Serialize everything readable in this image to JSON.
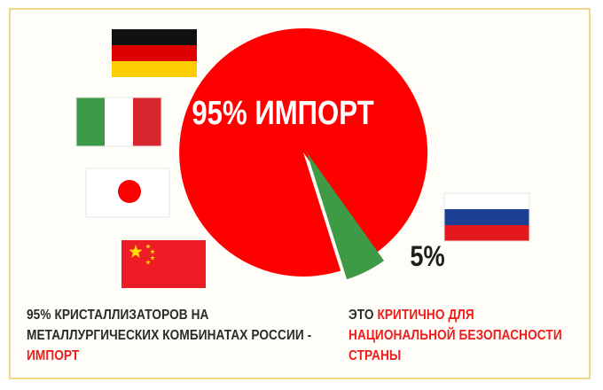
{
  "chart_data": {
    "type": "pie",
    "slices": [
      {
        "label": "95% ИМПОРТ",
        "value": 95,
        "color": "#ff0000"
      },
      {
        "label": "5%",
        "value": 5,
        "color": "#3f9a46"
      }
    ],
    "import_flags": [
      "germany",
      "italy",
      "japan",
      "china"
    ],
    "domestic_flag": "russia"
  },
  "captions": {
    "left": {
      "text": "95% КРИСТАЛЛИЗАТОРОВ НА МЕТАЛЛУРГИЧЕСКИХ КОМБИНАТАХ РОССИИ - ",
      "accent": "ИМПОРТ"
    },
    "right": {
      "text": "ЭТО ",
      "accent": "КРИТИЧНО ДЛЯ НАЦИОНАЛЬНОЙ БЕЗОПАСНОСТИ СТРАНЫ"
    }
  },
  "colors": {
    "frame_border": "#f0d88a",
    "red": "#ff0000",
    "green": "#3f9a46",
    "text": "#2a2a2a",
    "accent": "#ee1c1c"
  }
}
